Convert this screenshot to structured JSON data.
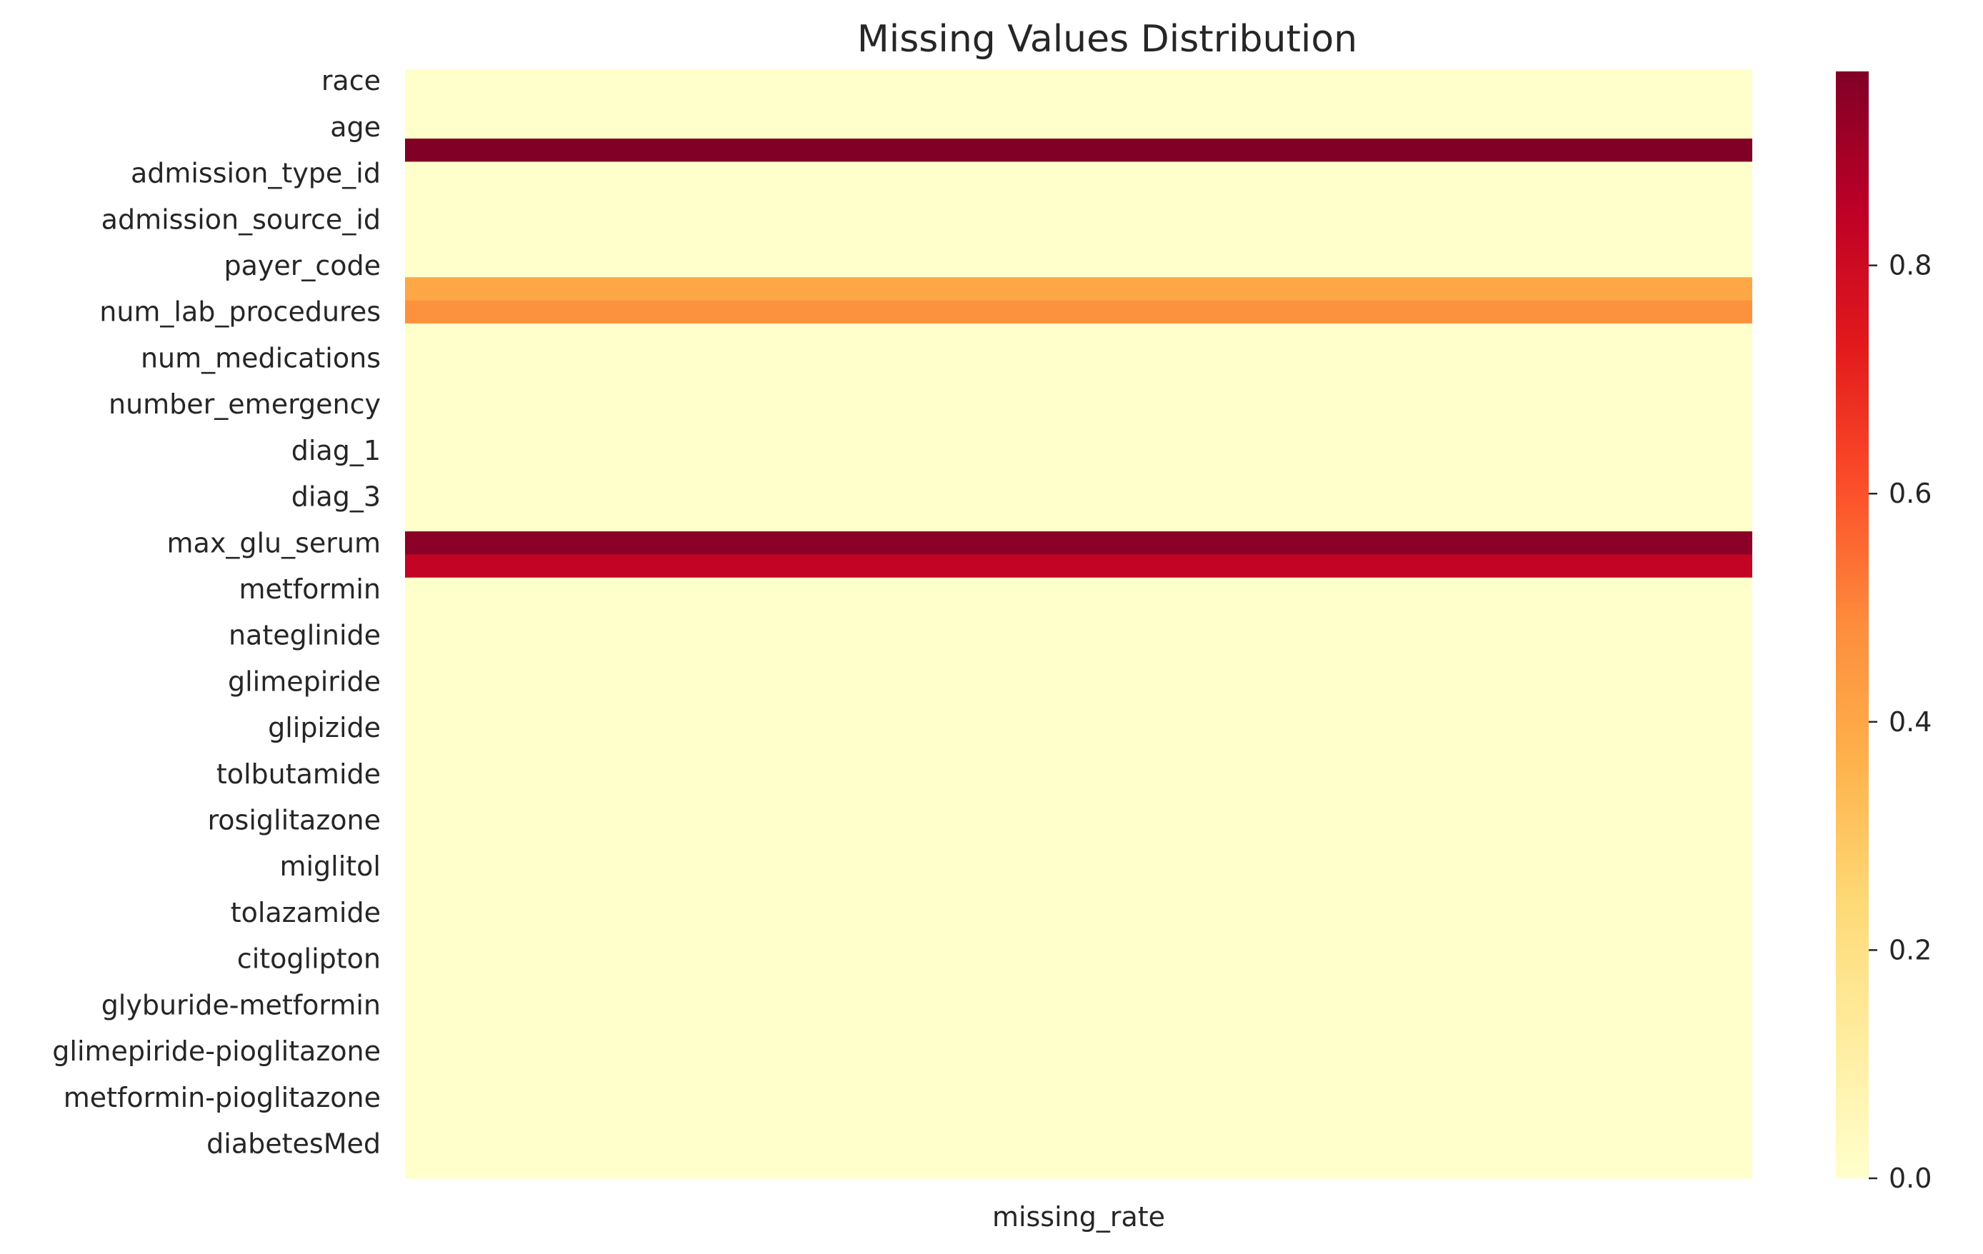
{
  "chart_data": {
    "type": "heatmap",
    "title": "Missing Values Distribution",
    "xlabel": "",
    "ylabel": "",
    "columns": [
      "missing_rate"
    ],
    "row_labels_shown": [
      "race",
      "age",
      "admission_type_id",
      "admission_source_id",
      "payer_code",
      "num_lab_procedures",
      "num_medications",
      "number_emergency",
      "diag_1",
      "diag_3",
      "max_glu_serum",
      "metformin",
      "nateglinide",
      "glimepiride",
      "glipizide",
      "tolbutamide",
      "rosiglitazone",
      "miglitol",
      "tolazamide",
      "citoglipton",
      "glyburide-metformin",
      "glimepiride-pioglitazone",
      "metformin-pioglitazone",
      "diabetesMed"
    ],
    "values": [
      0.0,
      0.0,
      0.0,
      0.97,
      0.0,
      0.0,
      0.0,
      0.0,
      0.0,
      0.4,
      0.47,
      0.0,
      0.0,
      0.0,
      0.0,
      0.0,
      0.0,
      0.0,
      0.0,
      0.0,
      0.95,
      0.83,
      0.0,
      0.0,
      0.0,
      0.0,
      0.0,
      0.0,
      0.0,
      0.0,
      0.0,
      0.0,
      0.0,
      0.0,
      0.0,
      0.0,
      0.0,
      0.0,
      0.0,
      0.0,
      0.0,
      0.0,
      0.0,
      0.0,
      0.0,
      0.0,
      0.0,
      0.0
    ],
    "colormap": "YlOrRd",
    "vmin": 0.0,
    "vmax": 0.97,
    "colorbar": {
      "ticks": [
        0.0,
        0.2,
        0.4,
        0.6,
        0.8
      ],
      "tick_labels": [
        "0.0",
        "0.2",
        "0.4",
        "0.6",
        "0.8"
      ]
    },
    "grid": false
  }
}
